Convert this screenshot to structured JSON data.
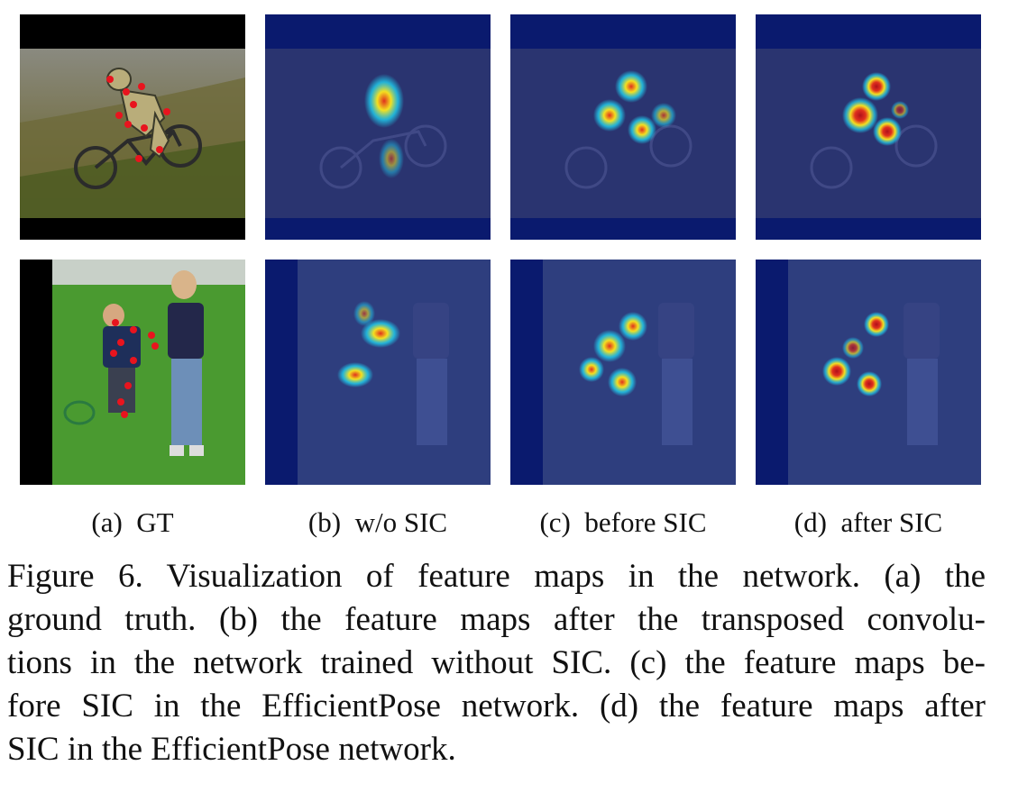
{
  "figure": {
    "subfigures": [
      {
        "label": "(a)",
        "title": "GT"
      },
      {
        "label": "(b)",
        "title": "w/o SIC"
      },
      {
        "label": "(c)",
        "title": "before SIC"
      },
      {
        "label": "(d)",
        "title": "after SIC"
      }
    ],
    "caption_lines": [
      "Figure 6. Visualization of feature maps in the network. (a) the",
      "ground truth. (b) the feature maps after the transposed convolu-",
      "tions in the network trained without SIC. (c) the feature maps be-",
      "fore SIC in the EfficientPose network. (d) the feature maps after",
      "SIC in the EfficientPose network."
    ]
  },
  "colors": {
    "overlay_blue": "#0a1a6e",
    "heat_red": "#e0301e",
    "heat_yellow": "#f4e020",
    "heat_cyan": "#20d0f0",
    "gt_marker": "#e8141e"
  }
}
